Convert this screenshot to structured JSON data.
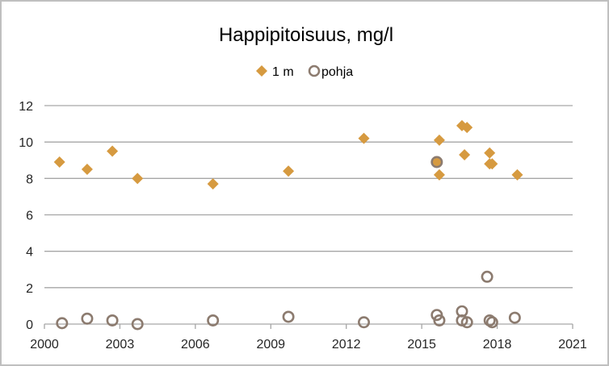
{
  "chart_data": {
    "type": "scatter",
    "title": "Happipitoisuus, mg/l",
    "xlabel": "",
    "ylabel": "",
    "xlim": [
      2000,
      2021
    ],
    "ylim": [
      0,
      12
    ],
    "xticks": [
      2000,
      2003,
      2006,
      2009,
      2012,
      2015,
      2018,
      2021
    ],
    "yticks": [
      0,
      2,
      4,
      6,
      8,
      10,
      12
    ],
    "grid": "horizontal",
    "legend_position": "top",
    "series": [
      {
        "name": "1 m",
        "marker": "diamond",
        "color": "#d69a40",
        "points": [
          {
            "x": 2000.6,
            "y": 8.9
          },
          {
            "x": 2001.7,
            "y": 8.5
          },
          {
            "x": 2002.7,
            "y": 9.5
          },
          {
            "x": 2003.7,
            "y": 8.0
          },
          {
            "x": 2006.7,
            "y": 7.7
          },
          {
            "x": 2009.7,
            "y": 8.4
          },
          {
            "x": 2012.7,
            "y": 10.2
          },
          {
            "x": 2015.6,
            "y": 8.9
          },
          {
            "x": 2015.7,
            "y": 8.2
          },
          {
            "x": 2015.7,
            "y": 10.1
          },
          {
            "x": 2016.6,
            "y": 10.9
          },
          {
            "x": 2016.7,
            "y": 9.3
          },
          {
            "x": 2016.8,
            "y": 10.8
          },
          {
            "x": 2017.7,
            "y": 9.4
          },
          {
            "x": 2017.7,
            "y": 8.8
          },
          {
            "x": 2017.8,
            "y": 8.8
          },
          {
            "x": 2018.8,
            "y": 8.2
          }
        ]
      },
      {
        "name": "pohja",
        "marker": "circle",
        "color": "#8c7b6f",
        "points": [
          {
            "x": 2000.7,
            "y": 0.05
          },
          {
            "x": 2001.7,
            "y": 0.3
          },
          {
            "x": 2002.7,
            "y": 0.2
          },
          {
            "x": 2003.7,
            "y": 0.0
          },
          {
            "x": 2006.7,
            "y": 0.2
          },
          {
            "x": 2009.7,
            "y": 0.4
          },
          {
            "x": 2012.7,
            "y": 0.1
          },
          {
            "x": 2015.6,
            "y": 8.9
          },
          {
            "x": 2015.6,
            "y": 0.5
          },
          {
            "x": 2015.7,
            "y": 0.2
          },
          {
            "x": 2016.6,
            "y": 0.7
          },
          {
            "x": 2016.6,
            "y": 0.2
          },
          {
            "x": 2016.8,
            "y": 0.1
          },
          {
            "x": 2017.6,
            "y": 2.6
          },
          {
            "x": 2017.7,
            "y": 0.2
          },
          {
            "x": 2017.8,
            "y": 0.1
          },
          {
            "x": 2018.7,
            "y": 0.35
          }
        ]
      }
    ]
  }
}
